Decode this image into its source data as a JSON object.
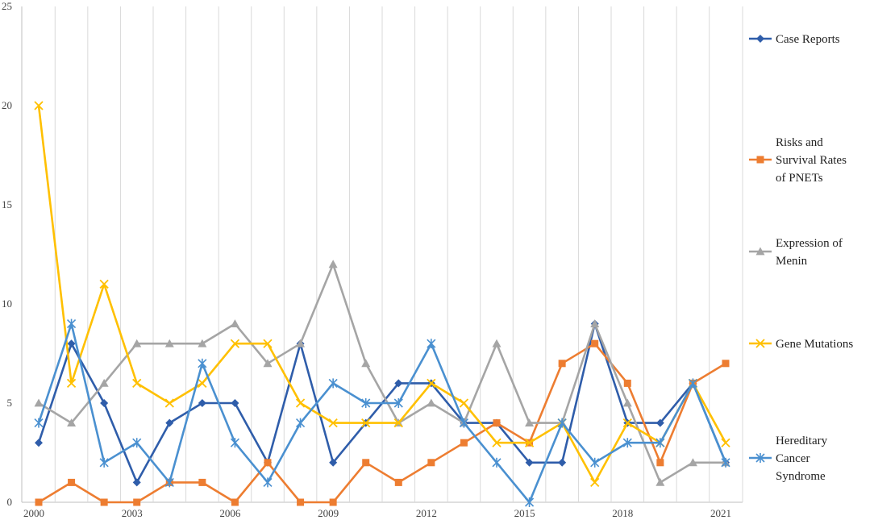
{
  "chart_data": {
    "type": "line",
    "x": [
      2000,
      2001,
      2002,
      2003,
      2004,
      2005,
      2006,
      2007,
      2008,
      2009,
      2010,
      2011,
      2012,
      2013,
      2014,
      2015,
      2016,
      2017,
      2018,
      2019,
      2020,
      2021
    ],
    "x_tick_labels": [
      "2000",
      "2003",
      "2006",
      "2009",
      "2012",
      "2015",
      "2018",
      "2021"
    ],
    "x_tick_values": [
      2000,
      2003,
      2006,
      2009,
      2012,
      2015,
      2018,
      2021
    ],
    "y_ticks": [
      0,
      5,
      10,
      15,
      20,
      25
    ],
    "ylim": [
      0,
      25
    ],
    "grid": "vertical",
    "legend_position": "right",
    "series": [
      {
        "name": "Case Reports",
        "legend_lines": [
          "Case Reports"
        ],
        "color": "#2F5DAA",
        "marker": "diamond",
        "values": [
          3,
          8,
          5,
          1,
          4,
          5,
          5,
          2,
          8,
          2,
          4,
          6,
          6,
          4,
          4,
          2,
          2,
          9,
          4,
          4,
          6,
          2
        ]
      },
      {
        "name": "Risks and Survival Rates of PNETs",
        "legend_lines": [
          "Risks and",
          "Survival Rates",
          "of PNETs"
        ],
        "color": "#ED7D31",
        "marker": "square",
        "values": [
          0,
          1,
          0,
          0,
          1,
          1,
          0,
          2,
          0,
          0,
          2,
          1,
          2,
          3,
          4,
          3,
          7,
          8,
          6,
          2,
          6,
          7
        ]
      },
      {
        "name": "Expression of Menin",
        "legend_lines": [
          "Expression of",
          "Menin"
        ],
        "color": "#A5A5A5",
        "marker": "triangle",
        "values": [
          5,
          4,
          6,
          8,
          8,
          8,
          9,
          7,
          8,
          12,
          7,
          4,
          5,
          4,
          8,
          4,
          4,
          9,
          5,
          1,
          2,
          2
        ]
      },
      {
        "name": "Gene Mutations",
        "legend_lines": [
          "Gene Mutations"
        ],
        "color": "#FFC000",
        "marker": "x",
        "values": [
          20,
          6,
          11,
          6,
          5,
          6,
          8,
          8,
          5,
          4,
          4,
          4,
          6,
          5,
          3,
          3,
          4,
          1,
          4,
          3,
          6,
          3
        ]
      },
      {
        "name": "Hereditary Cancer Syndrome",
        "legend_lines": [
          "Hereditary",
          "Cancer",
          "Syndrome"
        ],
        "color": "#4A90D0",
        "marker": "asterisk",
        "values": [
          4,
          9,
          2,
          3,
          1,
          7,
          3,
          1,
          4,
          6,
          5,
          5,
          8,
          4,
          2,
          0,
          4,
          2,
          3,
          3,
          6,
          2
        ]
      }
    ]
  }
}
